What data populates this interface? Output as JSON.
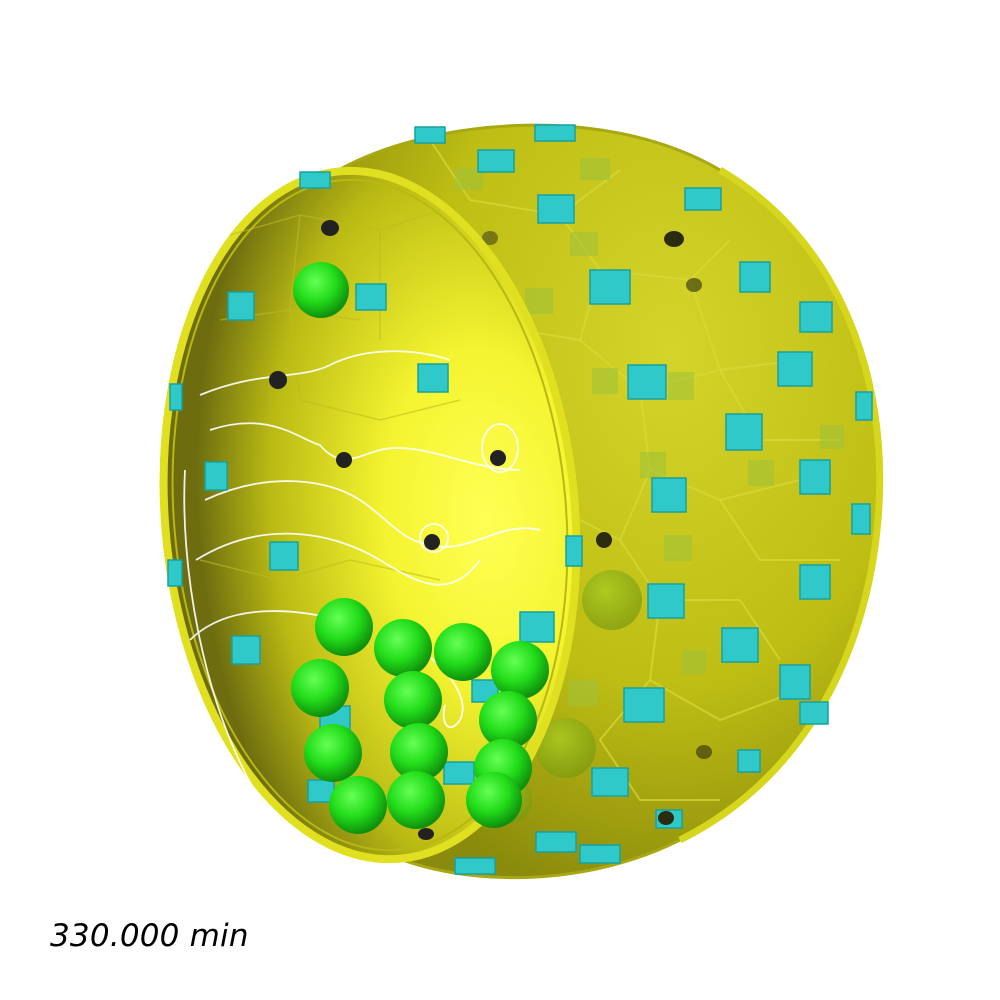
{
  "scene": {
    "description_name": "cutaway-yellow-cell-sphere",
    "colors": {
      "background": "#ffffff",
      "shell": "#c8c81a",
      "shell_dark": "#8f8f10",
      "interior": "#ffff40",
      "rim": "#e0e020",
      "cube": "#2fc9c9",
      "sphere": "#22dd22",
      "contour": "#ffffff",
      "pore": "#222222"
    }
  },
  "timestamp": {
    "label": "330.000 min"
  }
}
